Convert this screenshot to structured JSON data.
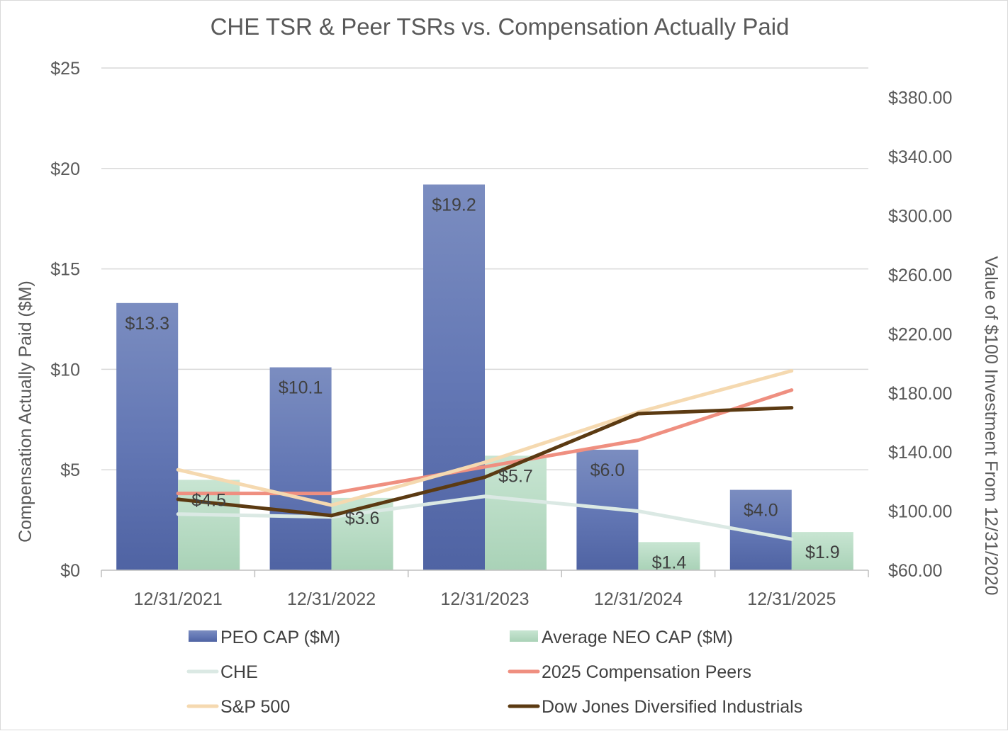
{
  "chart_data": {
    "type": "bar",
    "title": "CHE TSR & Peer TSRs vs. Compensation Actually Paid",
    "ylabel": "Compensation Actually Paid ($M)",
    "y2label": "Value of $100 Investment From 12/31/2020",
    "categories": [
      "12/31/2021",
      "12/31/2022",
      "12/31/2023",
      "12/31/2024",
      "12/31/2025"
    ],
    "ylim": [
      0,
      25
    ],
    "yticks": [
      0,
      5,
      10,
      15,
      20,
      25
    ],
    "ytick_labels": [
      "$0",
      "$5",
      "$10",
      "$15",
      "$20",
      "$25"
    ],
    "y2lim": [
      60,
      400
    ],
    "y2ticks": [
      60,
      100,
      140,
      180,
      220,
      260,
      300,
      340,
      380
    ],
    "y2tick_labels": [
      "$60.00",
      "$100.00",
      "$140.00",
      "$180.00",
      "$220.00",
      "$260.00",
      "$300.00",
      "$340.00",
      "$380.00"
    ],
    "bar_series": [
      {
        "name": "PEO CAP ($M)",
        "values": [
          13.3,
          10.1,
          19.2,
          6.0,
          4.0
        ],
        "labels": [
          "$13.3",
          "$10.1",
          "$19.2",
          "$6.0",
          "$4.0"
        ],
        "color": "#6a80b8"
      },
      {
        "name": "Average NEO CAP ($M)",
        "values": [
          4.5,
          3.6,
          5.7,
          1.4,
          1.9
        ],
        "labels": [
          "$4.5",
          "$3.6",
          "$5.7",
          "$1.4",
          "$1.9"
        ],
        "color": "#b9dcc6"
      }
    ],
    "line_series": [
      {
        "name": "CHE",
        "values": [
          98,
          96,
          110,
          100,
          81
        ],
        "color": "#dbe9e4"
      },
      {
        "name": "2025 Compensation Peers",
        "values": [
          112,
          112,
          130,
          148,
          182
        ],
        "color": "#ef8f80"
      },
      {
        "name": "S&P 500",
        "values": [
          128,
          104,
          133,
          167,
          195
        ],
        "color": "#f5d9b0"
      },
      {
        "name": "Dow Jones Diversified Industrials",
        "values": [
          108,
          97,
          123,
          166,
          170
        ],
        "color": "#5b3a12"
      }
    ],
    "legend_position": "bottom",
    "grid": true
  }
}
